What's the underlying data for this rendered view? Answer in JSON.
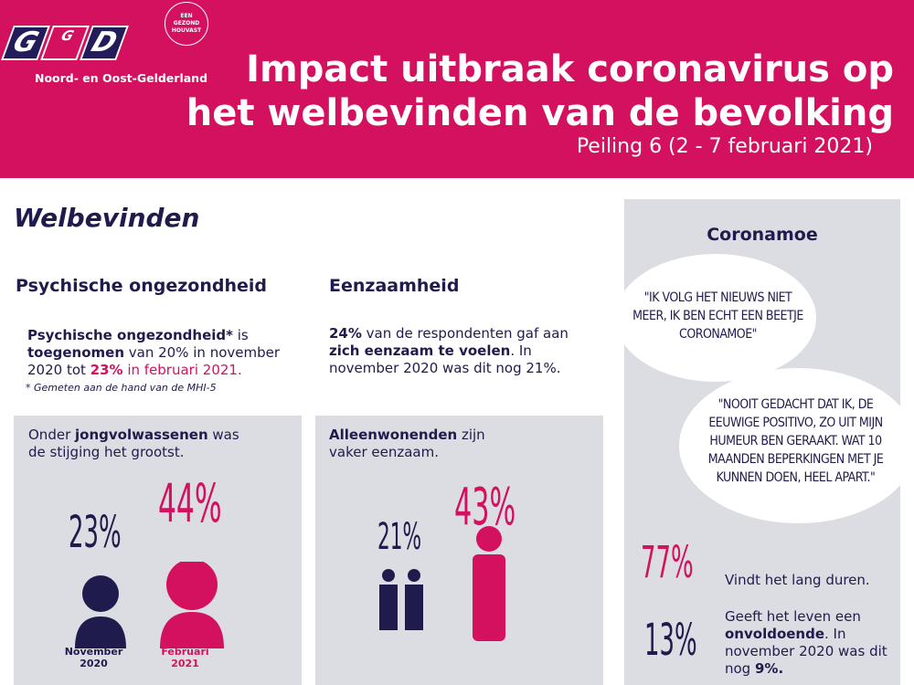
{
  "header": {
    "logo_text": "GGD",
    "region": "Noord- en Oost-Gelderland",
    "seal": "EEN GEZOND HOUVAST",
    "title_line1": "Impact uitbraak coronavirus op",
    "title_line2": "het welbevinden van de bevolking",
    "subtitle": "Peiling 6 (2 - 7 februari 2021)"
  },
  "section_title": "Welbevinden",
  "psych": {
    "heading": "Psychische ongezondheid",
    "p1_bold": "Psychische ongezondheid*",
    "p1_a": " is ",
    "p1_bold2": "toegenomen",
    "p1_b": " van 20% in november 2020 tot ",
    "p1_hl": "23%",
    "p1_c": " in februari 2021.",
    "footnote": "* Gemeten aan de hand van de MHI-5",
    "box_a": "Onder ",
    "box_bold": "jongvolwassenen",
    "box_b": " was de stijging het grootst.",
    "val_nov": "23%",
    "val_feb": "44%",
    "label_nov": "November 2020",
    "label_feb": "Februari 2021"
  },
  "eenzaam": {
    "heading": "Eenzaamheid",
    "p_bold": "24%",
    "p_a": " van de respondenten gaf aan ",
    "p_bold2": "zich eenzaam te voelen",
    "p_b": ". In november 2020 was dit nog 21%.",
    "box_bold": "Alleenwonenden",
    "box_a": " zijn vaker eenzaam.",
    "val_a": "21%",
    "val_b": "43%"
  },
  "coronamoe": {
    "heading": "Coronamoe",
    "quote1": "\"Ik volg het nieuws niet meer, ik ben echt een beetje Coronamoe\"",
    "quote2": "\"Nooit gedacht dat ik, de eeuwige positivo, zo uit mijn humeur ben geraakt. Wat 10 maanden beperkingen met je kunnen doen, heel apart.\"",
    "stat1_val": "77%",
    "stat1_text": "Vindt het lang duren.",
    "stat2_val": "13%",
    "stat2_a": "Geeft het leven een ",
    "stat2_bold": "onvoldoende",
    "stat2_b": ". In november 2020 was dit nog ",
    "stat2_bold2": "9%."
  },
  "colors": {
    "magenta": "#d3115f",
    "navy": "#1f1b4d",
    "grey": "#dcdde3"
  }
}
